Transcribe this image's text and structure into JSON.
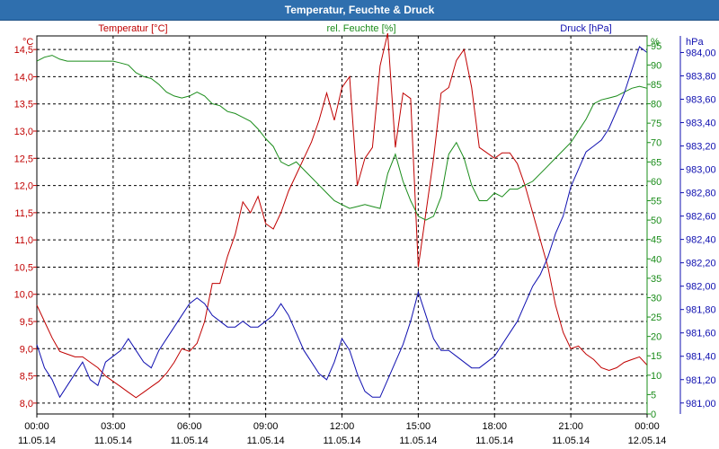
{
  "window": {
    "title": "Temperatur, Feuchte & Druck"
  },
  "chart_data": {
    "type": "line",
    "title": "Temperatur, Feuchte & Druck",
    "grid": true,
    "x_ticks": [
      {
        "time": "00:00",
        "date": "11.05.14"
      },
      {
        "time": "03:00",
        "date": "11.05.14"
      },
      {
        "time": "06:00",
        "date": "11.05.14"
      },
      {
        "time": "09:00",
        "date": "11.05.14"
      },
      {
        "time": "12:00",
        "date": "11.05.14"
      },
      {
        "time": "15:00",
        "date": "11.05.14"
      },
      {
        "time": "18:00",
        "date": "11.05.14"
      },
      {
        "time": "21:00",
        "date": "11.05.14"
      },
      {
        "time": "00:00",
        "date": "12.05.14"
      }
    ],
    "x_range_hours": [
      0,
      24
    ],
    "series": [
      {
        "name": "Temperatur [°C]",
        "axis_unit": "°C",
        "color": "#c00000",
        "ylim": [
          7.8,
          14.75
        ],
        "tick_labels": [
          "8,0",
          "8,5",
          "9,0",
          "9,5",
          "10,0",
          "10,5",
          "11,0",
          "11,5",
          "12,0",
          "12,5",
          "13,0",
          "13,5",
          "14,0",
          "14,5"
        ],
        "x": [
          0,
          0.3,
          0.6,
          0.9,
          1.2,
          1.5,
          1.8,
          2.1,
          2.4,
          2.7,
          3.0,
          3.3,
          3.6,
          3.9,
          4.2,
          4.5,
          4.8,
          5.1,
          5.4,
          5.7,
          6.0,
          6.3,
          6.6,
          6.9,
          7.2,
          7.5,
          7.8,
          8.1,
          8.4,
          8.7,
          9.0,
          9.3,
          9.6,
          9.9,
          10.2,
          10.5,
          10.8,
          11.1,
          11.4,
          11.7,
          12.0,
          12.3,
          12.6,
          12.9,
          13.2,
          13.5,
          13.8,
          14.1,
          14.4,
          14.7,
          15.0,
          15.3,
          15.6,
          15.9,
          16.2,
          16.5,
          16.8,
          17.1,
          17.4,
          17.7,
          18.0,
          18.3,
          18.6,
          18.9,
          19.2,
          19.5,
          19.8,
          20.1,
          20.4,
          20.7,
          21.0,
          21.3,
          21.6,
          21.9,
          22.2,
          22.5,
          22.8,
          23.1,
          23.4,
          23.7,
          24.0
        ],
        "values": [
          9.8,
          9.5,
          9.2,
          8.95,
          8.9,
          8.85,
          8.85,
          8.75,
          8.65,
          8.5,
          8.4,
          8.3,
          8.2,
          8.1,
          8.2,
          8.3,
          8.4,
          8.55,
          8.75,
          9.0,
          8.95,
          9.1,
          9.5,
          10.2,
          10.2,
          10.7,
          11.1,
          11.7,
          11.5,
          11.8,
          11.3,
          11.2,
          11.5,
          11.9,
          12.2,
          12.5,
          12.8,
          13.2,
          13.7,
          13.2,
          13.8,
          14.0,
          12.0,
          12.5,
          12.7,
          14.2,
          14.8,
          12.7,
          13.7,
          13.6,
          10.5,
          11.5,
          12.5,
          13.7,
          13.8,
          14.3,
          14.5,
          13.8,
          12.7,
          12.6,
          12.5,
          12.6,
          12.6,
          12.4,
          12.0,
          11.5,
          11.0,
          10.5,
          9.8,
          9.3,
          9.0,
          9.05,
          8.9,
          8.8,
          8.65,
          8.6,
          8.65,
          8.75,
          8.8,
          8.85,
          8.7
        ]
      },
      {
        "name": "rel. Feuchte [%]",
        "axis_unit": "%",
        "color": "#1a8c1a",
        "ylim": [
          0,
          97.5
        ],
        "tick_labels": [
          "0",
          "5",
          "10",
          "15",
          "20",
          "25",
          "30",
          "35",
          "40",
          "45",
          "50",
          "55",
          "60",
          "65",
          "70",
          "75",
          "80",
          "85",
          "90",
          "95"
        ],
        "x": [
          0,
          0.3,
          0.6,
          0.9,
          1.2,
          1.5,
          1.8,
          2.1,
          2.4,
          2.7,
          3.0,
          3.3,
          3.6,
          3.9,
          4.2,
          4.5,
          4.8,
          5.1,
          5.4,
          5.7,
          6.0,
          6.3,
          6.6,
          6.9,
          7.2,
          7.5,
          7.8,
          8.1,
          8.4,
          8.7,
          9.0,
          9.3,
          9.6,
          9.9,
          10.2,
          10.5,
          10.8,
          11.1,
          11.4,
          11.7,
          12.0,
          12.3,
          12.6,
          12.9,
          13.2,
          13.5,
          13.8,
          14.1,
          14.4,
          14.7,
          15.0,
          15.3,
          15.6,
          15.9,
          16.2,
          16.5,
          16.8,
          17.1,
          17.4,
          17.7,
          18.0,
          18.3,
          18.6,
          18.9,
          19.2,
          19.5,
          19.8,
          20.1,
          20.4,
          20.7,
          21.0,
          21.3,
          21.6,
          21.9,
          22.2,
          22.5,
          22.8,
          23.1,
          23.4,
          23.7,
          24.0
        ],
        "values": [
          91,
          92,
          92.5,
          91.5,
          91,
          91,
          91,
          91,
          91,
          91,
          91,
          90.5,
          90,
          88,
          87,
          86.5,
          85,
          83,
          82,
          81.5,
          82,
          83,
          82,
          80,
          79.5,
          78,
          77.5,
          76.5,
          75.5,
          73.5,
          71,
          69,
          65,
          64,
          65,
          63,
          61,
          59,
          57,
          55,
          54,
          53,
          53.5,
          54,
          53.5,
          53,
          62,
          67,
          60,
          55,
          51,
          50,
          51,
          56,
          67,
          70,
          66,
          59,
          55,
          55,
          57,
          56,
          58,
          58,
          59,
          60,
          62,
          64,
          66,
          68,
          70,
          73,
          76,
          80,
          81,
          81.5,
          82,
          83,
          84,
          84.5,
          84
        ]
      },
      {
        "name": "Druck [hPa]",
        "axis_unit": "hPa",
        "color": "#1010b0",
        "ylim": [
          980.906,
          984.142
        ],
        "tick_labels": [
          "981,00",
          "981,20",
          "981,40",
          "981,60",
          "981,80",
          "982,00",
          "982,20",
          "982,40",
          "982,60",
          "982,80",
          "983,00",
          "983,20",
          "983,40",
          "983,60",
          "983,80",
          "984,00"
        ],
        "x": [
          0,
          0.3,
          0.6,
          0.9,
          1.2,
          1.5,
          1.8,
          2.1,
          2.4,
          2.7,
          3.0,
          3.3,
          3.6,
          3.9,
          4.2,
          4.5,
          4.8,
          5.1,
          5.4,
          5.7,
          6.0,
          6.3,
          6.6,
          6.9,
          7.2,
          7.5,
          7.8,
          8.1,
          8.4,
          8.7,
          9.0,
          9.3,
          9.6,
          9.9,
          10.2,
          10.5,
          10.8,
          11.1,
          11.4,
          11.7,
          12.0,
          12.3,
          12.6,
          12.9,
          13.2,
          13.5,
          13.8,
          14.1,
          14.4,
          14.7,
          15.0,
          15.3,
          15.6,
          15.9,
          16.2,
          16.5,
          16.8,
          17.1,
          17.4,
          17.7,
          18.0,
          18.3,
          18.6,
          18.9,
          19.2,
          19.5,
          19.8,
          20.1,
          20.4,
          20.7,
          21.0,
          21.3,
          21.6,
          21.9,
          22.2,
          22.5,
          22.8,
          23.1,
          23.4,
          23.7,
          24.0
        ],
        "values": [
          981.5,
          981.3,
          981.2,
          981.05,
          981.15,
          981.25,
          981.35,
          981.2,
          981.15,
          981.35,
          981.4,
          981.45,
          981.55,
          981.45,
          981.35,
          981.3,
          981.45,
          981.55,
          981.65,
          981.75,
          981.85,
          981.9,
          981.85,
          981.75,
          981.7,
          981.65,
          981.65,
          981.7,
          981.65,
          981.65,
          981.7,
          981.75,
          981.85,
          981.75,
          981.6,
          981.45,
          981.35,
          981.25,
          981.2,
          981.35,
          981.55,
          981.45,
          981.25,
          981.1,
          981.05,
          981.05,
          981.2,
          981.35,
          981.5,
          981.7,
          981.95,
          981.75,
          981.55,
          981.45,
          981.45,
          981.4,
          981.35,
          981.3,
          981.3,
          981.35,
          981.4,
          981.5,
          981.6,
          981.7,
          981.85,
          982.0,
          982.1,
          982.25,
          982.45,
          982.6,
          982.85,
          983.0,
          983.15,
          983.2,
          983.25,
          983.35,
          983.5,
          983.65,
          983.85,
          984.05,
          984.0
        ]
      }
    ]
  }
}
